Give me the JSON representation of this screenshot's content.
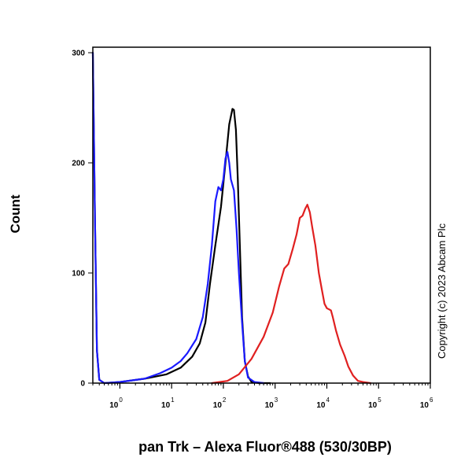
{
  "chart_data": {
    "type": "line",
    "title": "",
    "xlabel": "pan Trk – Alexa Fluor®488 (530/30BP)",
    "ylabel": "Count",
    "x_scale": "log",
    "xlim": [
      0.3,
      1000000
    ],
    "ylim": [
      0,
      300
    ],
    "x_ticks": [
      {
        "base": "10",
        "exp": "0",
        "value": 1
      },
      {
        "base": "10",
        "exp": "1",
        "value": 10
      },
      {
        "base": "10",
        "exp": "2",
        "value": 100
      },
      {
        "base": "10",
        "exp": "3",
        "value": 1000
      },
      {
        "base": "10",
        "exp": "4",
        "value": 10000
      },
      {
        "base": "10",
        "exp": "5",
        "value": 100000
      },
      {
        "base": "10",
        "exp": "6",
        "value": 1000000
      }
    ],
    "y_ticks": [
      {
        "label": "0",
        "value": 0
      },
      {
        "label": "100",
        "value": 100
      },
      {
        "label": "200",
        "value": 200
      },
      {
        "label": "300",
        "value": 300
      }
    ],
    "grid": false,
    "series": [
      {
        "color": "#000000",
        "x": [
          0.3,
          0.33,
          0.36,
          0.4,
          0.5,
          1,
          3,
          8,
          15,
          25,
          35,
          45,
          55,
          70,
          90,
          110,
          130,
          150,
          160,
          175,
          190,
          210,
          230,
          260,
          300,
          350,
          500,
          800
        ],
        "y": [
          300,
          150,
          30,
          3,
          0,
          1,
          4,
          8,
          14,
          24,
          36,
          55,
          90,
          125,
          160,
          200,
          235,
          249,
          248,
          230,
          185,
          120,
          60,
          20,
          6,
          1,
          0,
          0
        ]
      },
      {
        "color": "#1a1aff",
        "x": [
          0.3,
          0.33,
          0.36,
          0.4,
          0.5,
          1,
          3,
          6,
          10,
          15,
          20,
          30,
          40,
          50,
          60,
          70,
          80,
          90,
          100,
          110,
          120,
          130,
          140,
          160,
          180,
          200,
          230,
          260,
          300,
          400,
          600
        ],
        "y": [
          300,
          150,
          30,
          3,
          0,
          1,
          4,
          9,
          14,
          20,
          27,
          40,
          60,
          90,
          125,
          165,
          178,
          175,
          185,
          204,
          210,
          200,
          185,
          175,
          140,
          100,
          55,
          20,
          5,
          1,
          0
        ]
      },
      {
        "color": "#e02020",
        "x": [
          60,
          120,
          200,
          350,
          600,
          900,
          1200,
          1500,
          1800,
          2200,
          2600,
          3000,
          3400,
          3800,
          4200,
          4700,
          5200,
          6000,
          7000,
          8000,
          9000,
          10000,
          11000,
          12000,
          13000,
          15000,
          18000,
          22000,
          26000,
          32000,
          40000,
          50000,
          70000
        ],
        "y": [
          0,
          2,
          8,
          22,
          42,
          64,
          88,
          104,
          108,
          122,
          135,
          150,
          152,
          158,
          162,
          155,
          142,
          125,
          100,
          85,
          72,
          68,
          67,
          66,
          60,
          48,
          35,
          25,
          15,
          7,
          2,
          1,
          0
        ]
      }
    ],
    "annotations": [
      "Copyright (c) 2023 Abcam Plc"
    ]
  }
}
